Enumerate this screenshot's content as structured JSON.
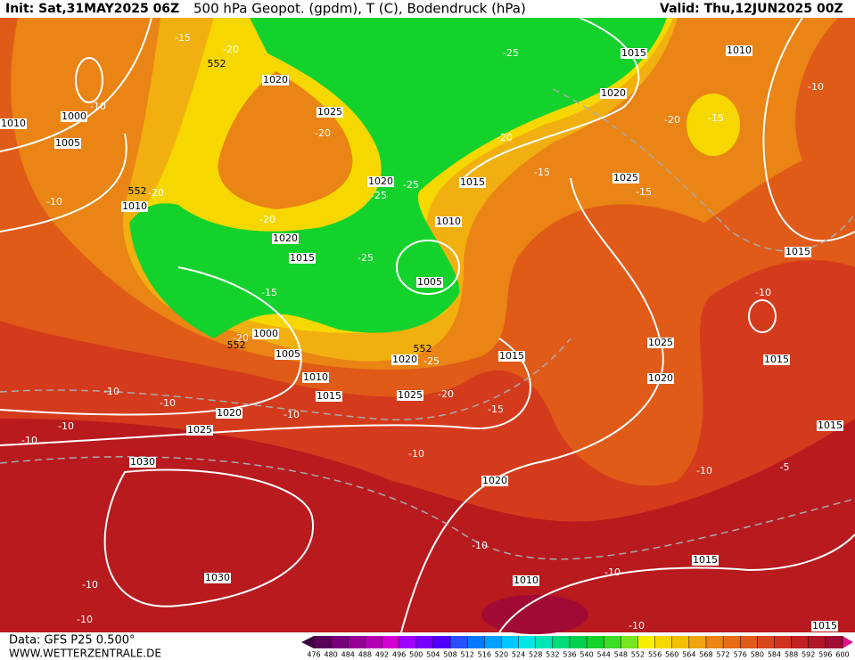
{
  "header": {
    "init": "Init: Sat,31MAY2025 06Z",
    "title": "500 hPa Geopot. (gpdm), T (C), Bodendruck (hPa)",
    "valid": "Valid: Thu,12JUN2025 00Z"
  },
  "footer": {
    "data": "Data: GFS P25 0.500°",
    "site": "WWW.WETTERZENTRALE.DE"
  },
  "colorbar": {
    "ticks": [
      476,
      480,
      484,
      488,
      492,
      496,
      500,
      504,
      508,
      512,
      516,
      520,
      524,
      528,
      532,
      536,
      540,
      544,
      548,
      552,
      556,
      560,
      564,
      568,
      572,
      576,
      580,
      584,
      588,
      592,
      596,
      600
    ]
  },
  "isobar_labels": [
    "1015",
    "1010",
    "1020",
    "1020",
    "1025",
    "1000",
    "1005",
    "1010",
    "1020",
    "1020",
    "1015",
    "1010",
    "1015",
    "1005",
    "1000",
    "1005",
    "1010",
    "1015",
    "1020",
    "1025",
    "1030",
    "1025",
    "1020",
    "1015",
    "1025",
    "1015",
    "1025",
    "1020",
    "1015",
    "1015",
    "1020",
    "1015",
    "1010",
    "1030",
    "1015",
    "1010"
  ],
  "temperature_labels": [
    "-15",
    "-20",
    "-10",
    "-20",
    "-25",
    "-25",
    "-20",
    "-25",
    "-15",
    "-20",
    "-15",
    "-10",
    "-15",
    "-10",
    "-20",
    "-20",
    "-25",
    "-15",
    "-20",
    "-10",
    "-10",
    "-10",
    "-10",
    "-10",
    "-20",
    "-15",
    "-10",
    "-10",
    "-10",
    "-5",
    "-10",
    "-10",
    "-10",
    "-10",
    "-10",
    "-25"
  ],
  "geopotential_labels": [
    "552",
    "552",
    "552",
    "552"
  ]
}
